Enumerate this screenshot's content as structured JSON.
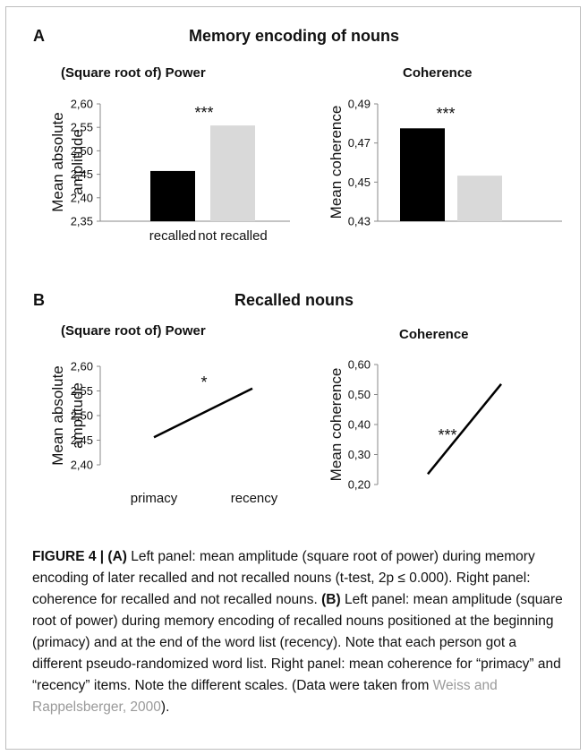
{
  "panel_a": {
    "letter": "A",
    "title": "Memory encoding of nouns"
  },
  "panel_b": {
    "letter": "B",
    "title": "Recalled nouns"
  },
  "chart_data": [
    {
      "type": "bar",
      "title": "(Square root of) Power",
      "ylabel": "Mean absolute amplitude",
      "categories": [
        "recalled",
        "not recalled"
      ],
      "values": [
        2.457,
        2.554
      ],
      "colors": [
        "#000000",
        "#d9d9d9"
      ],
      "ylim": [
        2.35,
        2.6
      ],
      "yticks": [
        "2,60",
        "2,55",
        "2,50",
        "2,45",
        "2,40",
        "2,35"
      ],
      "annotation": "***"
    },
    {
      "type": "bar",
      "title": "Coherence",
      "ylabel": "Mean coherence",
      "categories": [
        "",
        ""
      ],
      "values": [
        0.4775,
        0.4533
      ],
      "colors": [
        "#000000",
        "#d9d9d9"
      ],
      "ylim": [
        0.43,
        0.49
      ],
      "yticks": [
        "0,49",
        "0,47",
        "0,45",
        "0,43"
      ],
      "annotation": "***"
    },
    {
      "type": "line",
      "title": "(Square root of) Power",
      "ylabel": "Mean absolute amplitude",
      "categories": [
        "primacy",
        "recency"
      ],
      "values": [
        2.456,
        2.555
      ],
      "ylim": [
        2.4,
        2.6
      ],
      "yticks": [
        "2,60",
        "2,55",
        "2,50",
        "2,45",
        "2,40"
      ],
      "annotation": "*"
    },
    {
      "type": "line",
      "title": "Coherence",
      "ylabel": "Mean coherence",
      "categories": [
        "",
        ""
      ],
      "values": [
        0.235,
        0.535
      ],
      "ylim": [
        0.2,
        0.6
      ],
      "yticks": [
        "0,60",
        "0,50",
        "0,40",
        "0,30",
        "0,20"
      ],
      "annotation": "***"
    }
  ],
  "caption": {
    "label": "FIGURE 4 | (A)",
    "text1": " Left panel: mean amplitude (square root of power) during memory encoding of later recalled and not recalled nouns (t-test, 2p ≤ 0.000). Right panel: coherence for recalled and not recalled nouns. ",
    "label_b": "(B)",
    "text2": " Left panel: mean amplitude (square root of power) during memory encoding of recalled nouns positioned at the beginning (primacy) and at the end of the word list (recency). Note that each person got a different pseudo-randomized word list. Right panel: mean coherence for “primacy” and “recency” items. Note the different scales. (Data were taken from ",
    "link": "Weiss and Rappelsberger, 2000",
    "text3": ")."
  }
}
